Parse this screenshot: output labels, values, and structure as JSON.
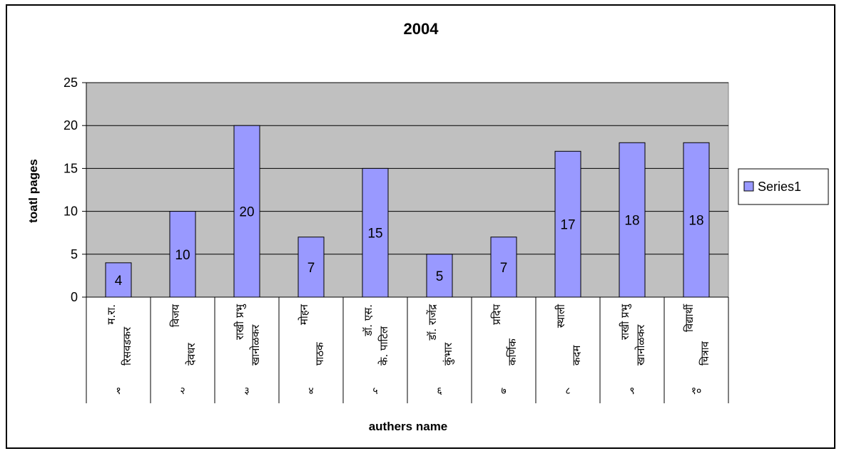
{
  "chart_data": {
    "type": "bar",
    "title": "2004",
    "xlabel": "authers name",
    "ylabel": "toatl pages",
    "ylim": [
      0,
      25
    ],
    "yticks": [
      0,
      5,
      10,
      15,
      20,
      25
    ],
    "grid": true,
    "legend_position": "right",
    "categories": [
      {
        "num": "१",
        "name1": "म.रा.",
        "name2": "रिसवडकर"
      },
      {
        "num": "२",
        "name1": "विजय",
        "name2": "देवधर"
      },
      {
        "num": "३",
        "name1": "राखी प्रभु",
        "name2": "खानोळकर"
      },
      {
        "num": "४",
        "name1": "मोहन",
        "name2": "पाठक"
      },
      {
        "num": "५",
        "name1": "डॉ. एस.",
        "name2": "के. पाटिल"
      },
      {
        "num": "६",
        "name1": "डॉ. राजेंद्र",
        "name2": "कुंभार"
      },
      {
        "num": "७",
        "name1": "प्रदिप",
        "name2": "कर्णिक"
      },
      {
        "num": "८",
        "name1": "स्थाली",
        "name2": "कदम"
      },
      {
        "num": "९",
        "name1": "राखी प्रभु",
        "name2": "खानोळकर"
      },
      {
        "num": "१०",
        "name1": "विद्यार्थी",
        "name2": "चित्राव"
      }
    ],
    "series": [
      {
        "name": "Series1",
        "values": [
          4,
          10,
          20,
          7,
          15,
          5,
          7,
          17,
          18,
          18
        ]
      }
    ],
    "colors": {
      "plot_bg": "#c0c0c0",
      "bar_fill": "#9999ff",
      "bar_stroke": "#000000",
      "grid": "#000000"
    }
  }
}
